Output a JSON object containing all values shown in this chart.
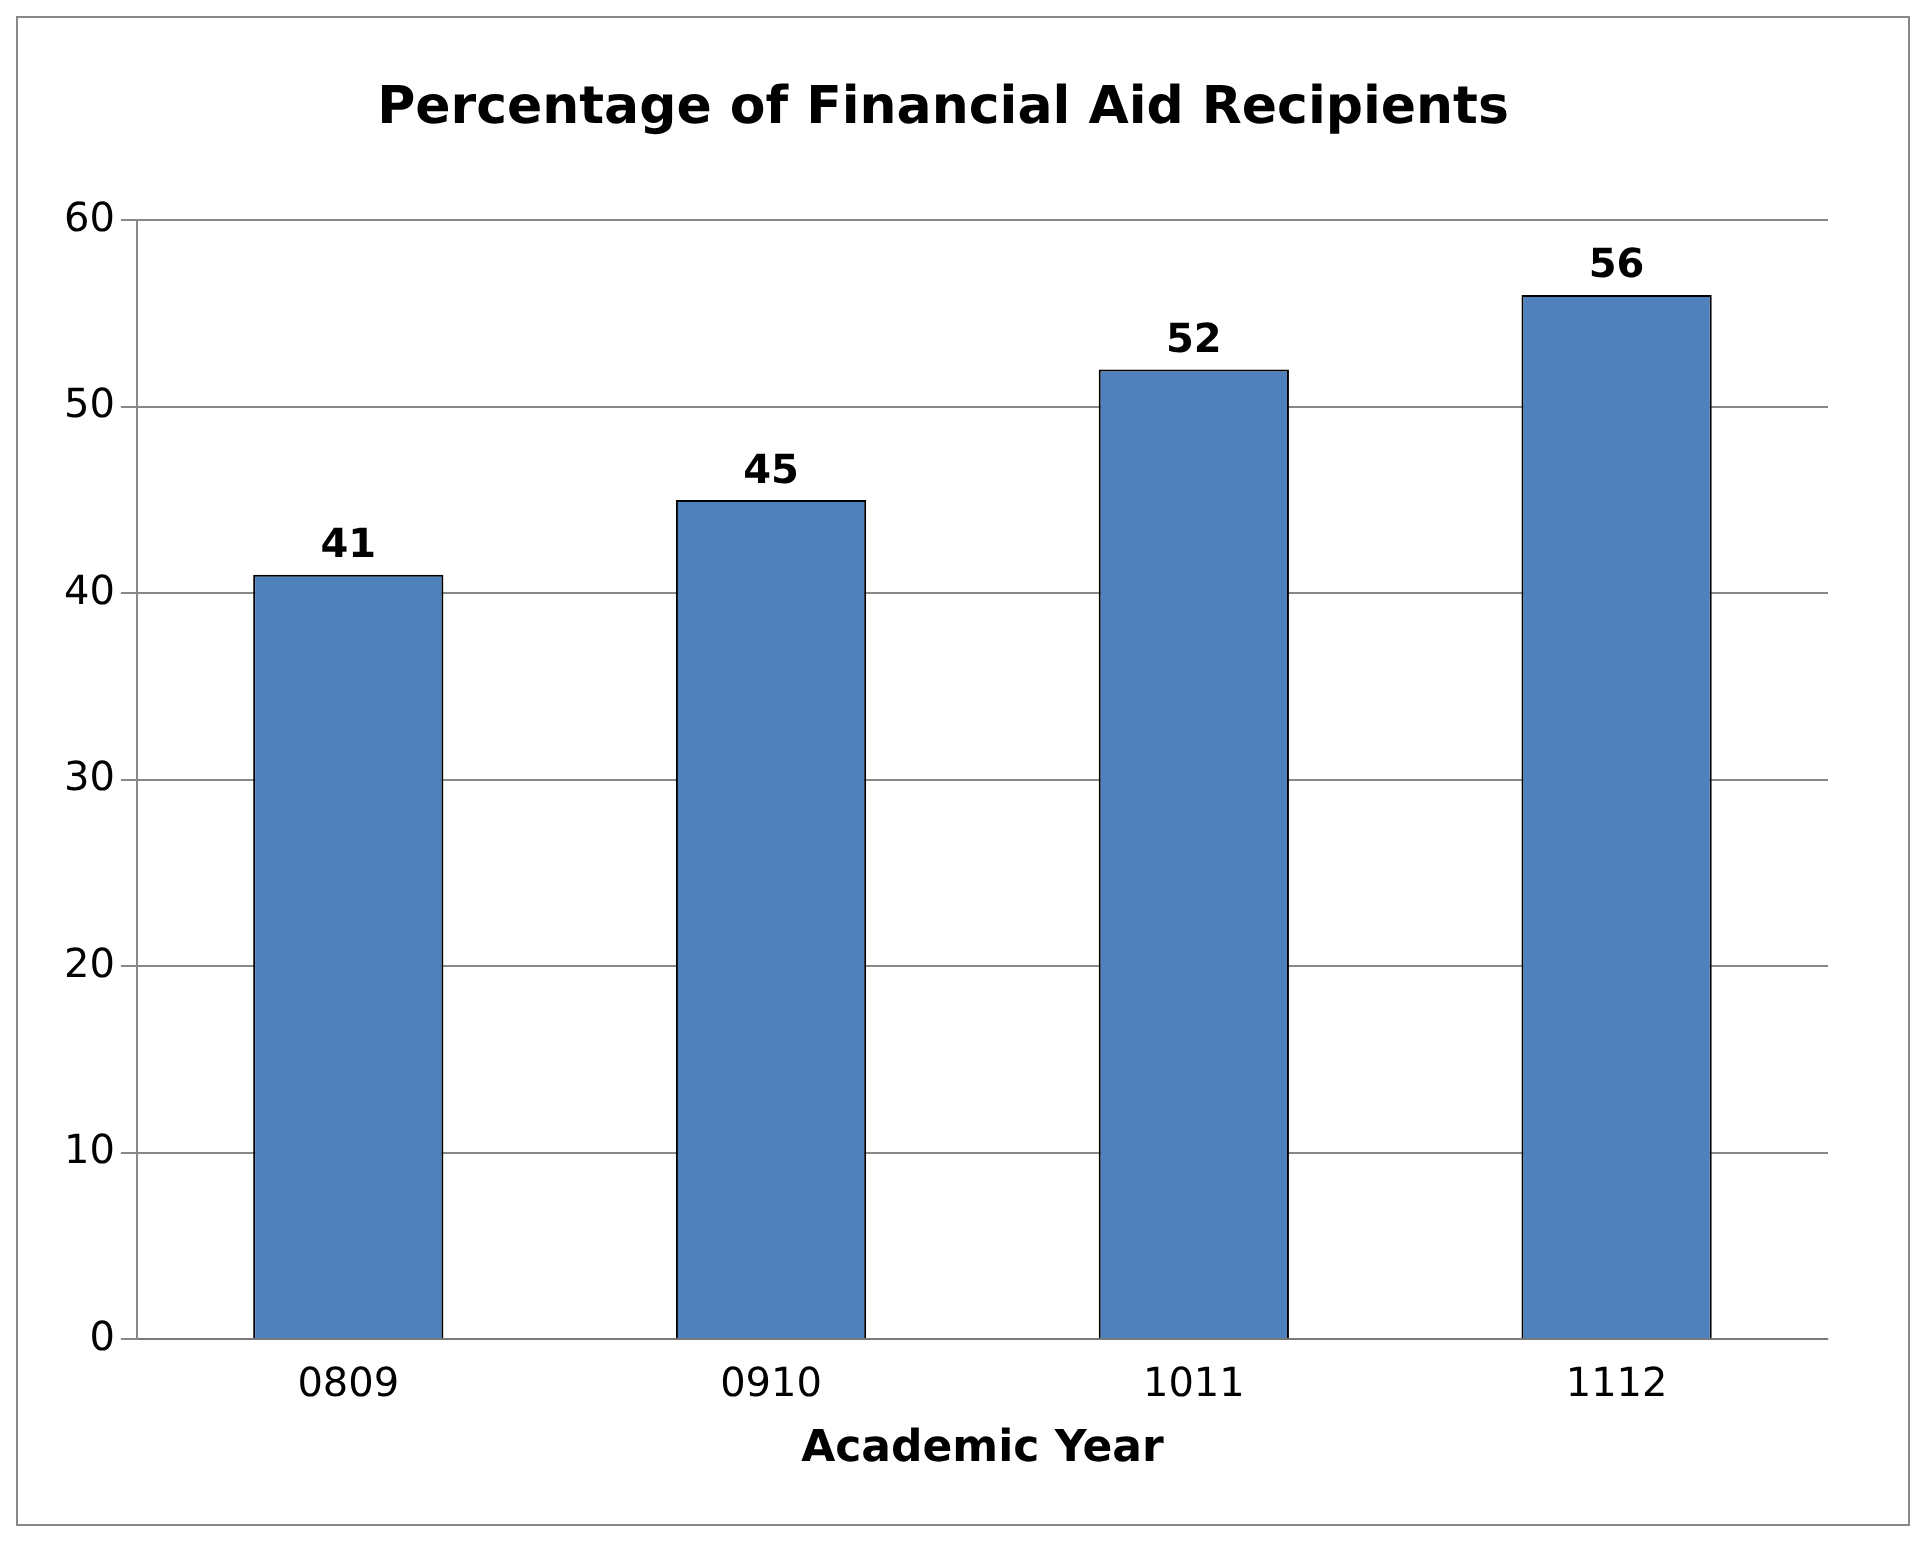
{
  "chart_data": {
    "type": "bar",
    "title": "Percentage of Financial Aid Recipients",
    "xlabel": "Academic Year",
    "categories": [
      "0809",
      "0910",
      "1011",
      "1112"
    ],
    "values": [
      41,
      45,
      52,
      56
    ],
    "color": "#4f81bd",
    "ylim": [
      0,
      60
    ],
    "yticks": [
      0,
      10,
      20,
      30,
      40,
      50,
      60
    ],
    "grid": "y",
    "data_labels": true
  }
}
